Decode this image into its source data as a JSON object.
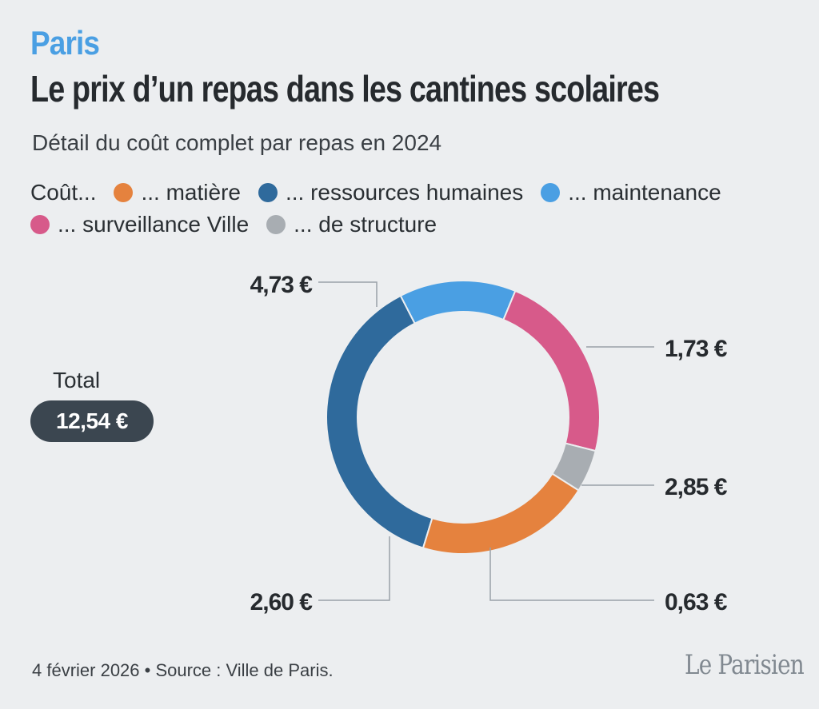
{
  "header": {
    "kicker": "Paris",
    "title": "Le prix d’un repas dans les cantines scolaires",
    "subtitle": "Détail du coût complet par repas en 2024"
  },
  "legend": {
    "prefix": "Coût...",
    "items": [
      {
        "label": "... matière",
        "color": "#e5823e"
      },
      {
        "label": "... ressources humaines",
        "color": "#2f6a9c"
      },
      {
        "label": "... maintenance",
        "color": "#4a9fe3"
      },
      {
        "label": "... surveillance Ville",
        "color": "#d75a8a"
      },
      {
        "label": "... de structure",
        "color": "#a8adb2"
      }
    ]
  },
  "total": {
    "label": "Total",
    "value": "12,54 €"
  },
  "chart_data": {
    "type": "pie",
    "donut": true,
    "categories": [
      "ressources humaines",
      "maintenance",
      "surveillance Ville",
      "de structure",
      "matière"
    ],
    "values": [
      4.73,
      1.73,
      2.85,
      0.63,
      2.6
    ],
    "value_labels": [
      "4,73 €",
      "1,73 €",
      "2,85 €",
      "0,63 €",
      "2,60 €"
    ],
    "colors": [
      "#2f6a9c",
      "#4a9fe3",
      "#d75a8a",
      "#a8adb2",
      "#e5823e"
    ],
    "legend_position": "top",
    "total": 12.54
  },
  "footer": {
    "text": "4 février 2026 • Source : Ville de Paris."
  },
  "logo": {
    "text": "Le Parisien"
  }
}
